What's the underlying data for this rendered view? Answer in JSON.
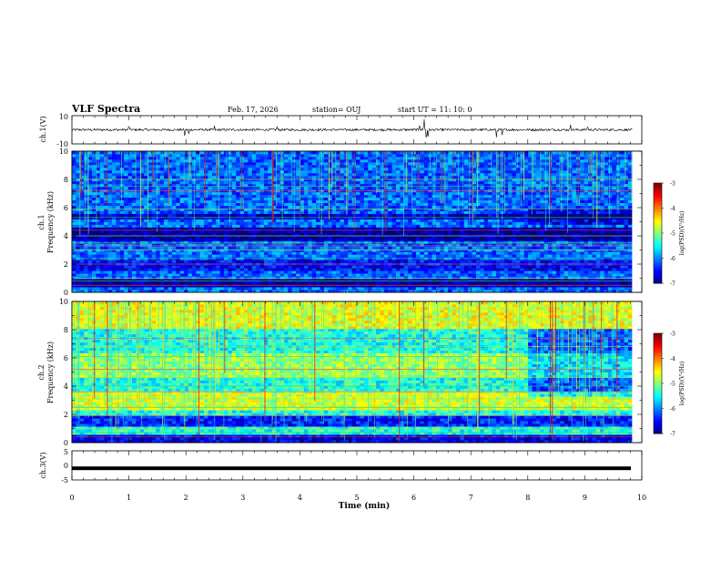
{
  "header": {
    "title": "VLF Spectra",
    "date": "Feb. 17, 2026",
    "station": "station= OUJ",
    "start": "start  UT =   11: 10: 0"
  },
  "chart_data": [
    {
      "type": "line",
      "id": "ch1-waveform",
      "ylabel": "ch.1(V)",
      "ylim": [
        -10,
        10
      ],
      "yticks": [
        "10",
        "-10"
      ],
      "xlim": [
        0,
        10
      ],
      "baseline": 0,
      "spikes": [
        {
          "x": 1.0,
          "v": 4
        },
        {
          "x": 1.98,
          "v": -6
        },
        {
          "x": 2.05,
          "v": -4
        },
        {
          "x": 2.5,
          "v": 3
        },
        {
          "x": 3.6,
          "v": 3
        },
        {
          "x": 6.1,
          "v": 5
        },
        {
          "x": 6.18,
          "v": 9
        },
        {
          "x": 6.22,
          "v": -9
        },
        {
          "x": 6.25,
          "v": -6
        },
        {
          "x": 7.45,
          "v": -6
        },
        {
          "x": 7.55,
          "v": -5
        },
        {
          "x": 8.75,
          "v": 4
        },
        {
          "x": 9.05,
          "v": 3
        }
      ]
    },
    {
      "type": "heatmap",
      "id": "ch1-spectrogram",
      "ylabel": "ch.1\nFrequency  (kHz)",
      "ylim": [
        0,
        10
      ],
      "yticks": [
        "0",
        "2",
        "4",
        "6",
        "8",
        "10"
      ],
      "xlim": [
        0,
        9.83
      ],
      "colorbar": {
        "label": "log(PSD)(V²/Hz)",
        "range": [
          -7,
          -3
        ],
        "ticks": [
          "-3",
          "-4",
          "-5",
          "-6",
          "-7"
        ]
      },
      "base_level": -6.1,
      "bands": [
        {
          "f0": 0.3,
          "f1": 0.9,
          "level": -6.9
        },
        {
          "f0": 1.5,
          "f1": 2.3,
          "level": -6.5
        },
        {
          "f0": 3.6,
          "f1": 4.6,
          "level": -6.9
        },
        {
          "f0": 5.2,
          "f1": 5.6,
          "level": -6.7
        }
      ],
      "lines_khz": [
        0.5,
        0.8,
        1.0,
        2.0,
        2.4,
        3.0,
        3.3,
        3.5,
        4.0,
        4.4,
        5.3,
        5.9,
        7.2,
        7.5,
        8.0
      ],
      "spherics_density": 0.55
    },
    {
      "type": "heatmap",
      "id": "ch2-spectrogram",
      "ylabel": "ch.2\nFrequency  (kHz)",
      "ylim": [
        0,
        10
      ],
      "yticks": [
        "0",
        "2",
        "4",
        "6",
        "8",
        "10"
      ],
      "xlim": [
        0,
        9.83
      ],
      "colorbar": {
        "label": "log(PSD)(V²/Hz)",
        "range": [
          -7,
          -3
        ],
        "ticks": [
          "-3",
          "-4",
          "-5",
          "-6",
          "-7"
        ]
      },
      "base_level": -5.4,
      "bands": [
        {
          "f0": 0.0,
          "f1": 0.6,
          "level": -6.6
        },
        {
          "f0": 1.2,
          "f1": 2.0,
          "level": -6.4
        },
        {
          "f0": 2.4,
          "f1": 3.6,
          "level": -4.7
        },
        {
          "f0": 4.6,
          "f1": 6.4,
          "level": -4.9
        },
        {
          "f0": 8.0,
          "f1": 10.0,
          "level": -4.6
        }
      ],
      "lines_khz": [
        0.4,
        0.7,
        1.0,
        1.9,
        2.5,
        3.1,
        3.6,
        4.0,
        4.6,
        5.2,
        6.1,
        6.8,
        7.4
      ],
      "spherics_density": 0.75
    },
    {
      "type": "line",
      "id": "ch3-waveform",
      "ylabel": "ch.3(V)",
      "ylim": [
        -5,
        5
      ],
      "yticks": [
        "5",
        "0",
        "-5"
      ],
      "xlim": [
        0,
        10
      ],
      "value": -1
    }
  ],
  "x_axis": {
    "label": "Time  (min)",
    "range": [
      0,
      10
    ],
    "ticks": [
      "0",
      "1",
      "2",
      "3",
      "4",
      "5",
      "6",
      "7",
      "8",
      "9",
      "10"
    ]
  }
}
